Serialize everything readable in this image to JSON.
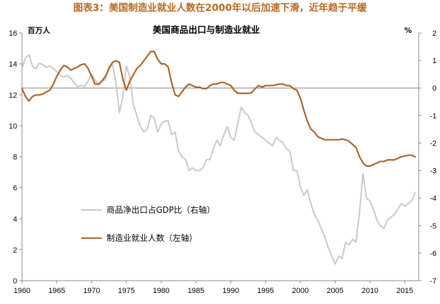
{
  "figure_title": "图表3：美国制造业就业人数在2000年以后加速下滑，近年趋于平缓",
  "colors": {
    "title": "#b8681e",
    "employment": "#b0601e",
    "net_exports": "#c8c8c8",
    "zero_line": "#9a9a9a"
  },
  "chart_data": {
    "type": "line",
    "title": "美国商品出口与制造业就业",
    "left_unit": "百万人",
    "right_unit": "%",
    "x_ticks": [
      "1960",
      "1965",
      "1970",
      "1975",
      "1980",
      "1985",
      "1990",
      "1995",
      "2000",
      "2005",
      "2010",
      "2015"
    ],
    "x_range": [
      1960,
      2017
    ],
    "left_axis": {
      "range": [
        0,
        16
      ],
      "ticks": [
        "0",
        "2",
        "4",
        "6",
        "8",
        "10",
        "12",
        "14",
        "16"
      ]
    },
    "right_axis": {
      "range": [
        -7,
        2
      ],
      "ticks": [
        "2",
        "1",
        "0",
        "-1",
        "-2",
        "-3",
        "-4",
        "-5",
        "-6",
        "-7"
      ]
    },
    "zero_reference": {
      "axis": "right",
      "value": 0
    },
    "series": [
      {
        "name": "商品净出口占GDP比（右轴）",
        "axis": "right",
        "x": [
          1960,
          1960.5,
          1961,
          1961.5,
          1962,
          1962.5,
          1963,
          1963.5,
          1964,
          1964.5,
          1965,
          1965.5,
          1966,
          1966.5,
          1967,
          1967.5,
          1968,
          1968.5,
          1969,
          1969.5,
          1970,
          1970.5,
          1971,
          1971.5,
          1972,
          1972.5,
          1973,
          1973.5,
          1974,
          1974.5,
          1975,
          1975.5,
          1976,
          1976.5,
          1977,
          1977.5,
          1978,
          1978.5,
          1979,
          1979.5,
          1980,
          1980.5,
          1981,
          1981.5,
          1982,
          1982.5,
          1983,
          1983.5,
          1984,
          1984.5,
          1985,
          1985.5,
          1986,
          1986.5,
          1987,
          1987.5,
          1988,
          1988.5,
          1989,
          1989.5,
          1990,
          1990.5,
          1991,
          1991.5,
          1992,
          1992.5,
          1993,
          1993.5,
          1994,
          1994.5,
          1995,
          1995.5,
          1996,
          1996.5,
          1997,
          1997.5,
          1998,
          1998.5,
          1999,
          1999.5,
          2000,
          2000.5,
          2001,
          2001.5,
          2002,
          2002.5,
          2003,
          2003.5,
          2004,
          2004.5,
          2005,
          2005.5,
          2006,
          2006.5,
          2007,
          2007.5,
          2008,
          2008.5,
          2009,
          2009.5,
          2010,
          2010.5,
          2011,
          2011.5,
          2012,
          2012.5,
          2013,
          2013.5,
          2014,
          2014.5,
          2015,
          2015.5,
          2016,
          2016.5
        ],
        "values": [
          0.7,
          1.1,
          1.2,
          0.8,
          0.7,
          0.9,
          0.85,
          0.75,
          0.8,
          0.7,
          0.6,
          0.45,
          0.4,
          0.45,
          0.35,
          0.2,
          0.05,
          0.1,
          0.05,
          0.25,
          0.5,
          0.3,
          0.1,
          0.25,
          0.3,
          0.8,
          0.85,
          0.2,
          -0.9,
          -0.3,
          0.8,
          0.4,
          -0.6,
          -1.0,
          -1.4,
          -1.6,
          -1.5,
          -1.0,
          -1.1,
          -1.6,
          -1.3,
          -1.2,
          -1.2,
          -1.7,
          -1.6,
          -2.3,
          -2.5,
          -2.6,
          -3.0,
          -2.9,
          -3.0,
          -3.0,
          -2.9,
          -2.6,
          -2.6,
          -2.2,
          -1.9,
          -2.1,
          -1.7,
          -1.4,
          -1.8,
          -1.9,
          -1.3,
          -0.7,
          -0.9,
          -1.0,
          -1.3,
          -1.6,
          -1.7,
          -1.8,
          -1.9,
          -2.0,
          -2.1,
          -1.8,
          -1.9,
          -2.0,
          -2.2,
          -2.3,
          -3.0,
          -3.0,
          -3.6,
          -3.9,
          -3.7,
          -4.2,
          -4.6,
          -4.8,
          -5.1,
          -5.4,
          -5.8,
          -6.1,
          -6.4,
          -6.1,
          -6.2,
          -5.6,
          -5.7,
          -5.5,
          -5.6,
          -4.5,
          -3.1,
          -4.0,
          -4.1,
          -4.4,
          -4.8,
          -5.0,
          -5.1,
          -4.8,
          -4.7,
          -4.6,
          -4.4,
          -4.2,
          -4.3,
          -4.2,
          -4.1,
          -3.8
        ]
      },
      {
        "name": "制造业就业人数（左轴）",
        "axis": "left",
        "x": [
          1960,
          1960.5,
          1961,
          1961.5,
          1962,
          1962.5,
          1963,
          1963.5,
          1964,
          1964.5,
          1965,
          1965.5,
          1966,
          1966.5,
          1967,
          1967.5,
          1968,
          1968.5,
          1969,
          1969.5,
          1970,
          1970.5,
          1971,
          1971.5,
          1972,
          1972.5,
          1973,
          1973.5,
          1974,
          1974.5,
          1975,
          1975.5,
          1976,
          1976.5,
          1977,
          1977.5,
          1978,
          1978.5,
          1979,
          1979.5,
          1980,
          1980.5,
          1981,
          1981.5,
          1982,
          1982.5,
          1983,
          1983.5,
          1984,
          1984.5,
          1985,
          1985.5,
          1986,
          1986.5,
          1987,
          1987.5,
          1988,
          1988.5,
          1989,
          1989.5,
          1990,
          1990.5,
          1991,
          1991.5,
          1992,
          1992.5,
          1993,
          1993.5,
          1994,
          1994.5,
          1995,
          1995.5,
          1996,
          1996.5,
          1997,
          1997.5,
          1998,
          1998.5,
          1999,
          1999.5,
          2000,
          2000.5,
          2001,
          2001.5,
          2002,
          2002.5,
          2003,
          2003.5,
          2004,
          2004.5,
          2005,
          2005.5,
          2006,
          2006.5,
          2007,
          2007.5,
          2008,
          2008.5,
          2009,
          2009.5,
          2010,
          2010.5,
          2011,
          2011.5,
          2012,
          2012.5,
          2013,
          2013.5,
          2014,
          2014.5,
          2015,
          2015.5,
          2016,
          2016.5
        ],
        "values": [
          12.4,
          11.9,
          11.6,
          11.9,
          12.0,
          12.0,
          12.05,
          12.2,
          12.3,
          12.7,
          13.2,
          13.6,
          13.9,
          13.8,
          13.6,
          13.7,
          13.8,
          13.95,
          14.0,
          13.7,
          13.2,
          12.7,
          12.7,
          12.9,
          13.2,
          13.7,
          14.1,
          14.2,
          14.1,
          13.0,
          12.3,
          12.9,
          13.3,
          13.7,
          13.9,
          14.2,
          14.5,
          14.8,
          14.8,
          14.3,
          14.0,
          14.0,
          13.8,
          12.8,
          12.0,
          11.9,
          12.2,
          12.5,
          12.7,
          12.6,
          12.5,
          12.5,
          12.4,
          12.4,
          12.6,
          12.7,
          12.7,
          12.8,
          12.8,
          12.7,
          12.6,
          12.3,
          12.1,
          12.1,
          12.1,
          12.1,
          12.15,
          12.4,
          12.6,
          12.5,
          12.6,
          12.6,
          12.6,
          12.65,
          12.7,
          12.7,
          12.6,
          12.6,
          12.4,
          12.3,
          11.8,
          11.0,
          10.3,
          9.8,
          9.6,
          9.3,
          9.2,
          9.1,
          9.1,
          9.1,
          9.1,
          9.1,
          9.15,
          9.1,
          9.0,
          8.8,
          8.6,
          8.0,
          7.6,
          7.4,
          7.4,
          7.5,
          7.6,
          7.7,
          7.7,
          7.8,
          7.8,
          7.8,
          7.9,
          8.0,
          8.05,
          8.1,
          8.1,
          8.0
        ]
      }
    ],
    "legend": {
      "placement": "bottom-left",
      "entries": [
        "商品净出口占GDP比（右轴）",
        "制造业就业人数（左轴）"
      ]
    }
  }
}
